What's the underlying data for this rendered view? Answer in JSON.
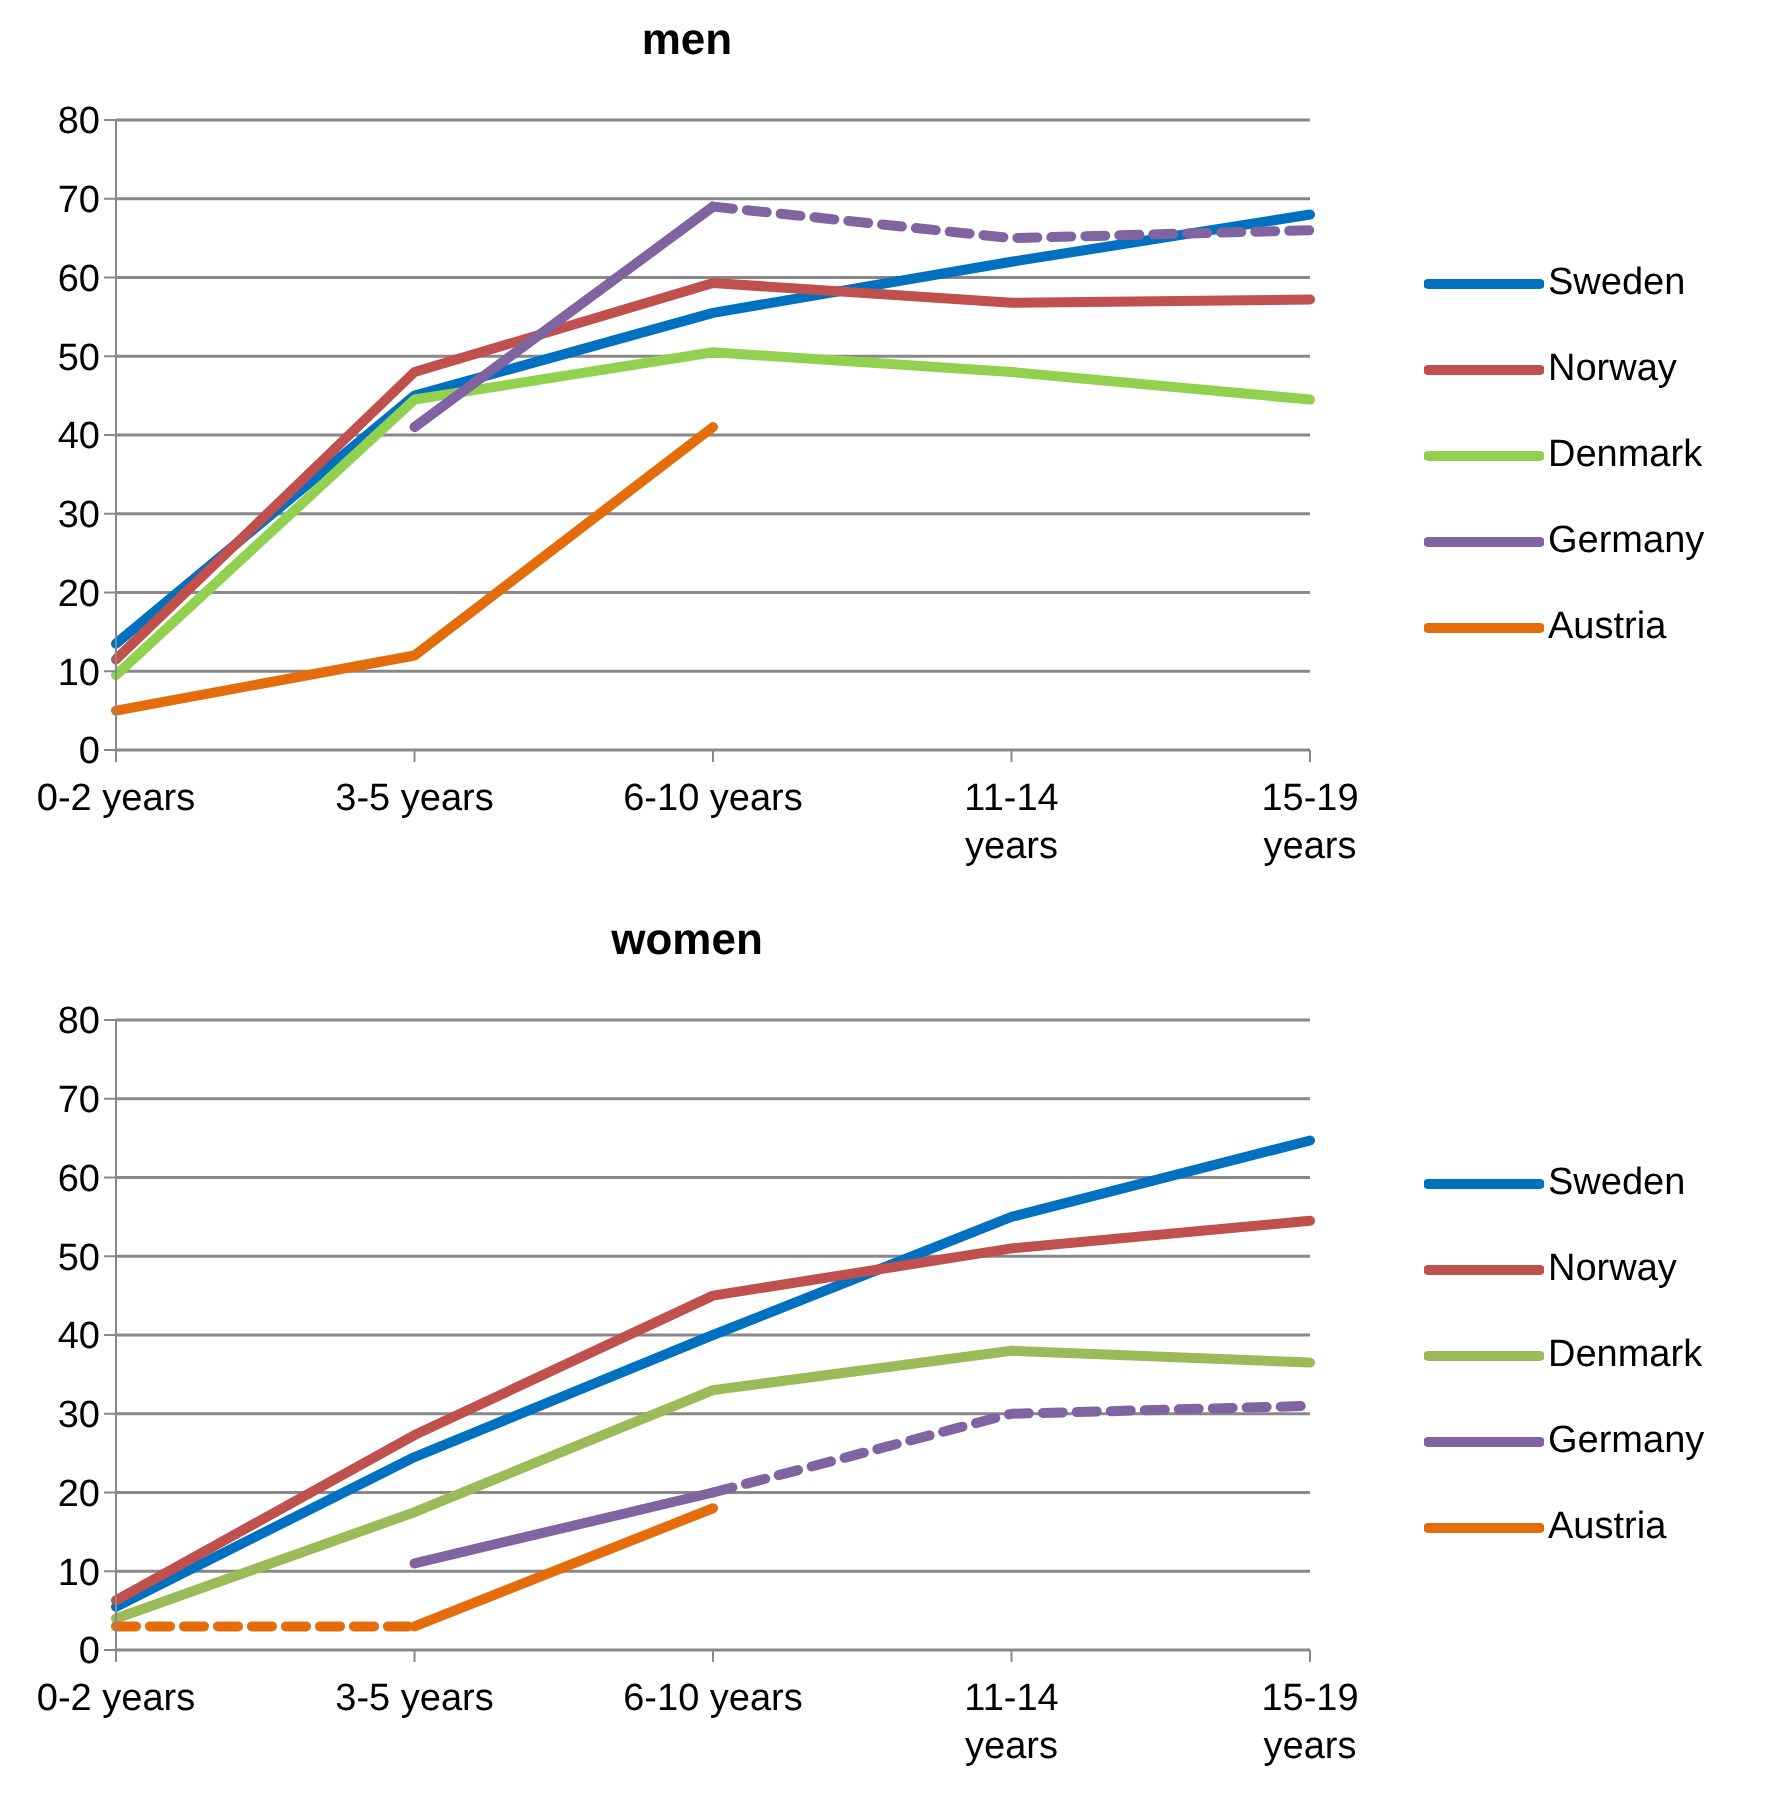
{
  "chart_data": [
    {
      "type": "line",
      "title": "men",
      "categories": [
        "0-2 years",
        "3-5 years",
        "6-10 years",
        "11-14 years",
        "15-19 years"
      ],
      "ylim": [
        0,
        80
      ],
      "yticks": [
        0,
        10,
        20,
        30,
        40,
        50,
        60,
        70,
        80
      ],
      "grid": "y",
      "legend": "right",
      "line_style": "solid",
      "series": [
        {
          "name": "Sweden",
          "color": "#0070c0",
          "values": [
            13.5,
            45,
            55.5,
            62,
            68
          ]
        },
        {
          "name": "Norway",
          "color": "#c0504d",
          "values": [
            11.5,
            48,
            59.3,
            56.8,
            57.2
          ]
        },
        {
          "name": "Denmark",
          "color": "#92d050",
          "values": [
            9.5,
            44.5,
            50.5,
            48,
            44.5
          ]
        },
        {
          "name": "Germany",
          "color": "#8064a2",
          "values": [
            null,
            41,
            69,
            null,
            null
          ]
        },
        {
          "color": "#8064a2",
          "line_style": "dashed",
          "values": [
            null,
            null,
            69,
            65,
            66
          ]
        },
        {
          "name": "Austria",
          "color": "#e46c0a",
          "values": [
            5,
            12,
            41,
            null,
            null
          ]
        }
      ]
    },
    {
      "type": "line",
      "title": "women",
      "categories": [
        "0-2 years",
        "3-5 years",
        "6-10 years",
        "11-14 years",
        "15-19 years"
      ],
      "ylim": [
        0,
        80
      ],
      "yticks": [
        0,
        10,
        20,
        30,
        40,
        50,
        60,
        70,
        80
      ],
      "grid": "y",
      "legend": "right",
      "line_style": "solid",
      "series": [
        {
          "name": "Sweden",
          "color": "#0070c0",
          "values": [
            5.5,
            24.5,
            40,
            55,
            64.7
          ]
        },
        {
          "name": "Norway",
          "color": "#c0504d",
          "values": [
            6.3,
            27.3,
            45,
            51,
            54.5
          ]
        },
        {
          "name": "Denmark",
          "color": "#9bbb59",
          "values": [
            4,
            17.5,
            33,
            38,
            36.5
          ]
        },
        {
          "name": "Germany",
          "color": "#8064a2",
          "values": [
            null,
            11,
            20,
            null,
            null
          ]
        },
        {
          "color": "#8064a2",
          "line_style": "dashed",
          "values": [
            null,
            null,
            20,
            30,
            31
          ]
        },
        {
          "name": "Austria",
          "color": "#e46c0a",
          "values": [
            null,
            3,
            18,
            null,
            null
          ]
        },
        {
          "color": "#e46c0a",
          "line_style": "dashed",
          "values": [
            3,
            3,
            null,
            null,
            null
          ]
        }
      ]
    }
  ]
}
